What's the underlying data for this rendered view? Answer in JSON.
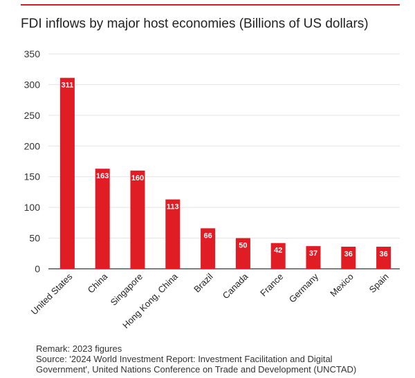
{
  "header": {
    "title": "FDI inflows by major host economies (Billions of US dollars)"
  },
  "colors": {
    "accent": "#d71920",
    "bar": "#e01c24",
    "grid": "#e3e3e3",
    "axis": "#333333"
  },
  "chart_data": {
    "type": "bar",
    "title": "FDI inflows by major host economies (Billions of US dollars)",
    "xlabel": "",
    "ylabel": "",
    "ylim": [
      0,
      350
    ],
    "yticks": [
      0,
      50,
      100,
      150,
      200,
      250,
      300,
      350
    ],
    "grid": true,
    "categories": [
      "United States",
      "China",
      "Singapore",
      "Hong Kong, China",
      "Brazil",
      "Canada",
      "France",
      "Germany",
      "Mexico",
      "Spain"
    ],
    "values": [
      311,
      163,
      160,
      113,
      66,
      50,
      42,
      37,
      36,
      36
    ],
    "data_labels": [
      "311",
      "163",
      "160",
      "113",
      "66",
      "50",
      "42",
      "37",
      "36",
      "36"
    ]
  },
  "footer": {
    "remark": "Remark: 2023 figures",
    "source_line1": "Source: '2024 World Investment Report: Investment Facilitation and Digital",
    "source_line2": "Government', United Nations Conference on Trade and Development (UNCTAD)"
  }
}
